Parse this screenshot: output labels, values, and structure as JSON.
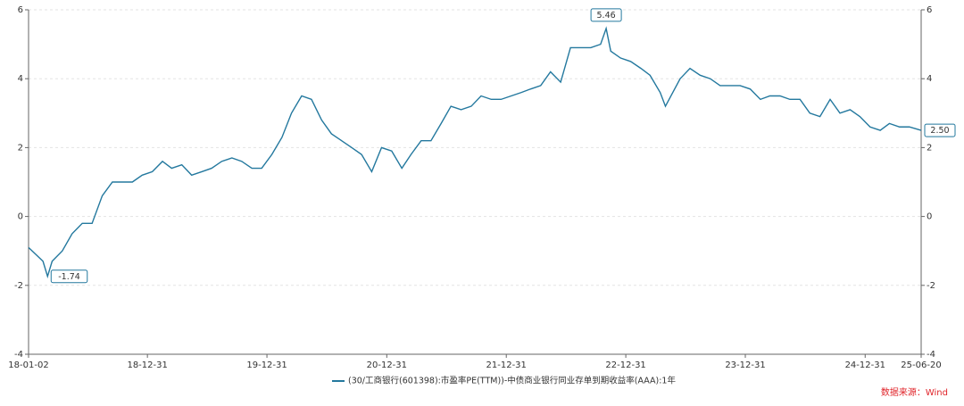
{
  "chart_data": {
    "type": "line",
    "x": [
      "18-01-02",
      "18-02-15",
      "18-03-01",
      "18-03-15",
      "18-04-15",
      "18-05-15",
      "18-06-15",
      "18-07-15",
      "18-08-15",
      "18-09-15",
      "18-10-15",
      "18-11-15",
      "18-12-15",
      "19-01-15",
      "19-02-15",
      "19-03-15",
      "19-04-15",
      "19-05-15",
      "19-06-15",
      "19-07-15",
      "19-08-15",
      "19-09-15",
      "19-10-15",
      "19-11-15",
      "19-12-15",
      "20-01-15",
      "20-02-15",
      "20-03-15",
      "20-04-15",
      "20-05-15",
      "20-06-15",
      "20-07-15",
      "20-08-15",
      "20-09-15",
      "20-10-15",
      "20-11-15",
      "20-12-15",
      "21-01-15",
      "21-02-15",
      "21-03-15",
      "21-04-15",
      "21-05-15",
      "21-06-15",
      "21-07-15",
      "21-08-15",
      "21-09-15",
      "21-10-15",
      "21-11-15",
      "21-12-15",
      "22-01-15",
      "22-02-15",
      "22-03-15",
      "22-04-15",
      "22-05-15",
      "22-06-15",
      "22-07-15",
      "22-08-15",
      "22-09-15",
      "22-10-15",
      "22-11-01",
      "22-11-15",
      "22-12-15",
      "23-01-15",
      "23-02-15",
      "23-03-15",
      "23-04-15",
      "23-05-01",
      "23-06-15",
      "23-07-15",
      "23-08-15",
      "23-09-15",
      "23-10-15",
      "23-11-15",
      "23-12-15",
      "24-01-15",
      "24-02-15",
      "24-03-15",
      "24-04-15",
      "24-05-15",
      "24-06-15",
      "24-07-15",
      "24-08-15",
      "24-09-15",
      "24-10-15",
      "24-11-15",
      "24-12-15",
      "25-01-15",
      "25-02-15",
      "25-03-15",
      "25-04-15",
      "25-05-15",
      "25-06-20"
    ],
    "series": [
      {
        "name": "(30/工商银行(601398):市盈率PE(TTM))-中债商业银行同业存单到期收益率(AAA):1年",
        "color": "#23789e",
        "values": [
          -0.9,
          -1.3,
          -1.74,
          -1.3,
          -1.0,
          -0.5,
          -0.2,
          -0.2,
          0.6,
          1.0,
          1.0,
          1.0,
          1.2,
          1.3,
          1.6,
          1.4,
          1.5,
          1.2,
          1.3,
          1.4,
          1.6,
          1.7,
          1.6,
          1.4,
          1.4,
          1.8,
          2.3,
          3.0,
          3.5,
          3.4,
          2.8,
          2.4,
          2.2,
          2.0,
          1.8,
          1.3,
          2.0,
          1.9,
          1.4,
          1.8,
          2.2,
          2.2,
          2.7,
          3.2,
          3.1,
          3.2,
          3.5,
          3.4,
          3.4,
          3.5,
          3.6,
          3.7,
          3.8,
          4.2,
          3.9,
          4.9,
          4.9,
          4.9,
          5.0,
          5.46,
          4.8,
          4.6,
          4.5,
          4.3,
          4.1,
          3.6,
          3.2,
          4.0,
          4.3,
          4.1,
          4.0,
          3.8,
          3.8,
          3.8,
          3.7,
          3.4,
          3.5,
          3.5,
          3.4,
          3.4,
          3.0,
          2.9,
          3.4,
          3.0,
          3.1,
          2.9,
          2.6,
          2.5,
          2.7,
          2.6,
          2.6,
          2.5
        ]
      }
    ],
    "xlim": [
      "18-01-02",
      "25-06-20"
    ],
    "xticks": [
      "18-01-02",
      "18-12-31",
      "19-12-31",
      "20-12-31",
      "21-12-31",
      "22-12-31",
      "23-12-31",
      "24-12-31",
      "25-06-20"
    ],
    "ylim": [
      -4,
      6
    ],
    "yticks": [
      -4,
      -2,
      0,
      2,
      4,
      6
    ],
    "y2lim": [
      -4,
      6
    ],
    "y2ticks": [
      -4,
      -2,
      0,
      2,
      4,
      6
    ],
    "grid": true,
    "annotations": [
      {
        "x": "22-11-01",
        "y": 5.46,
        "text": "5.46",
        "position": "top"
      },
      {
        "x": "18-03-01",
        "y": -1.74,
        "text": "-1.74",
        "position": "right"
      },
      {
        "x": "25-06-20",
        "y": 2.5,
        "text": "2.50",
        "position": "right"
      }
    ],
    "source": "数据来源：Wind"
  }
}
